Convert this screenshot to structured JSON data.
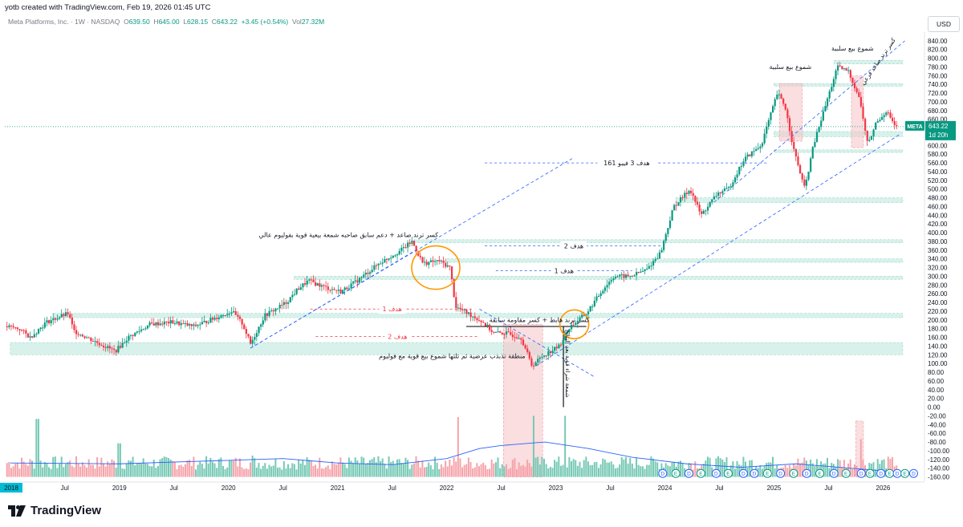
{
  "header": {
    "byline": "yotb created with TradingView.com, Feb 19, 2026 01:45 UTC"
  },
  "symbol": {
    "name": "Meta Platforms, Inc. · 1W · NASDAQ",
    "open_label": "O",
    "open": "639.50",
    "high_label": "H",
    "high": "645.00",
    "low_label": "L",
    "low": "628.15",
    "close_label": "C",
    "close": "643.22",
    "change": "+3.45 (+0.54%)",
    "vol_label": "Vol",
    "vol": "27.32M"
  },
  "currency": "USD",
  "price_tag": {
    "ticker": "META",
    "price": "643.22",
    "countdown": "1d 20h"
  },
  "footer": {
    "brand": "TradingView"
  },
  "colors": {
    "up": "#089981",
    "down": "#f23645",
    "zone": "#c8ebe3",
    "sell_zone": "#f7c8cc",
    "blue": "#2962ff",
    "orange": "#ff9800",
    "volume_ma": "#2962ff"
  },
  "chart_data": {
    "type": "candlestick",
    "interval": "1W",
    "ylim": [
      -170,
      860
    ],
    "price_ticks": [
      "-160.00",
      "-140.00",
      "-120.00",
      "-100.00",
      "-80.00",
      "-60.00",
      "-40.00",
      "-20.00",
      "0.00",
      "20.00",
      "40.00",
      "60.00",
      "80.00",
      "100.00",
      "120.00",
      "140.00",
      "160.00",
      "180.00",
      "200.00",
      "220.00",
      "240.00",
      "260.00",
      "280.00",
      "300.00",
      "320.00",
      "340.00",
      "360.00",
      "380.00",
      "400.00",
      "420.00",
      "440.00",
      "460.00",
      "480.00",
      "500.00",
      "520.00",
      "540.00",
      "560.00",
      "580.00",
      "600.00",
      "620.00",
      "640.00",
      "660.00",
      "680.00",
      "700.00",
      "720.00",
      "740.00",
      "760.00",
      "780.00",
      "800.00",
      "820.00",
      "840.00"
    ],
    "time_ticks": [
      {
        "label": "2018",
        "t": 2018.0
      },
      {
        "label": "Jul",
        "t": 2018.5
      },
      {
        "label": "2019",
        "t": 2019.0
      },
      {
        "label": "Jul",
        "t": 2019.5
      },
      {
        "label": "2020",
        "t": 2020.0
      },
      {
        "label": "Jul",
        "t": 2020.5
      },
      {
        "label": "2021",
        "t": 2021.0
      },
      {
        "label": "Jul",
        "t": 2021.5
      },
      {
        "label": "2022",
        "t": 2022.0
      },
      {
        "label": "Jul",
        "t": 2022.5
      },
      {
        "label": "2023",
        "t": 2023.0
      },
      {
        "label": "Jul",
        "t": 2023.5
      },
      {
        "label": "2024",
        "t": 2024.0
      },
      {
        "label": "Jul",
        "t": 2024.5
      },
      {
        "label": "2025",
        "t": 2025.0
      },
      {
        "label": "Jul",
        "t": 2025.5
      },
      {
        "label": "2026",
        "t": 2026.0
      }
    ],
    "xlim": [
      2017.95,
      2026.35
    ],
    "price_path": [
      [
        2017.95,
        186
      ],
      [
        2018.1,
        180
      ],
      [
        2018.2,
        160
      ],
      [
        2018.35,
        195
      ],
      [
        2018.55,
        215
      ],
      [
        2018.6,
        175
      ],
      [
        2018.8,
        150
      ],
      [
        2018.98,
        128
      ],
      [
        2019.1,
        160
      ],
      [
        2019.3,
        190
      ],
      [
        2019.5,
        195
      ],
      [
        2019.7,
        185
      ],
      [
        2019.9,
        205
      ],
      [
        2020.05,
        220
      ],
      [
        2020.15,
        190
      ],
      [
        2020.22,
        145
      ],
      [
        2020.35,
        210
      ],
      [
        2020.55,
        240
      ],
      [
        2020.65,
        270
      ],
      [
        2020.75,
        290
      ],
      [
        2020.9,
        275
      ],
      [
        2021.05,
        265
      ],
      [
        2021.2,
        290
      ],
      [
        2021.4,
        330
      ],
      [
        2021.6,
        360
      ],
      [
        2021.7,
        380
      ],
      [
        2021.8,
        330
      ],
      [
        2021.95,
        335
      ],
      [
        2022.05,
        320
      ],
      [
        2022.1,
        230
      ],
      [
        2022.25,
        210
      ],
      [
        2022.35,
        195
      ],
      [
        2022.45,
        170
      ],
      [
        2022.55,
        170
      ],
      [
        2022.7,
        160
      ],
      [
        2022.8,
        95
      ],
      [
        2022.9,
        118
      ],
      [
        2023.05,
        140
      ],
      [
        2023.15,
        185
      ],
      [
        2023.3,
        215
      ],
      [
        2023.45,
        270
      ],
      [
        2023.55,
        300
      ],
      [
        2023.7,
        300
      ],
      [
        2023.85,
        315
      ],
      [
        2023.98,
        355
      ],
      [
        2024.1,
        460
      ],
      [
        2024.25,
        500
      ],
      [
        2024.35,
        440
      ],
      [
        2024.5,
        490
      ],
      [
        2024.6,
        500
      ],
      [
        2024.75,
        570
      ],
      [
        2024.9,
        600
      ],
      [
        2025.05,
        720
      ],
      [
        2025.12,
        690
      ],
      [
        2025.2,
        590
      ],
      [
        2025.3,
        500
      ],
      [
        2025.38,
        600
      ],
      [
        2025.5,
        700
      ],
      [
        2025.6,
        780
      ],
      [
        2025.7,
        770
      ],
      [
        2025.8,
        710
      ],
      [
        2025.88,
        600
      ],
      [
        2025.95,
        650
      ],
      [
        2026.05,
        680
      ],
      [
        2026.13,
        643
      ]
    ],
    "horizontal_levels": [
      {
        "price": 643.22,
        "style": "dotted",
        "color": "#089981"
      }
    ],
    "support_resistance_zones": [
      {
        "t0": 2018.0,
        "t1": 2026.18,
        "lo": 120,
        "hi": 148
      },
      {
        "t0": 2018.4,
        "t1": 2026.18,
        "lo": 205,
        "hi": 215
      },
      {
        "t0": 2020.6,
        "t1": 2026.18,
        "lo": 293,
        "hi": 300
      },
      {
        "t0": 2022.0,
        "t1": 2026.18,
        "lo": 332,
        "hi": 340
      },
      {
        "t0": 2021.7,
        "t1": 2026.18,
        "lo": 377,
        "hi": 384
      },
      {
        "t0": 2024.1,
        "t1": 2026.18,
        "lo": 469,
        "hi": 480
      },
      {
        "t0": 2025.0,
        "t1": 2026.18,
        "lo": 584,
        "hi": 590
      },
      {
        "t0": 2025.0,
        "t1": 2026.18,
        "lo": 620,
        "hi": 632
      },
      {
        "t0": 2025.0,
        "t1": 2026.18,
        "lo": 736,
        "hi": 742
      },
      {
        "t0": 2025.55,
        "t1": 2026.18,
        "lo": 787,
        "hi": 795
      }
    ],
    "sell_zones": [
      {
        "t0": 2022.52,
        "t1": 2022.88,
        "lo": -160,
        "hi": 190
      },
      {
        "t0": 2025.05,
        "t1": 2025.26,
        "lo": 610,
        "hi": 742
      },
      {
        "t0": 2025.71,
        "t1": 2025.82,
        "lo": 595,
        "hi": 760
      },
      {
        "t0": 2025.75,
        "t1": 2025.82,
        "lo": -160,
        "hi": -32
      }
    ],
    "target_lines": [
      {
        "label": "هدف 3 فيبو 161",
        "price": 560,
        "t0": 2022.35,
        "t1": 2024.95,
        "color": "#2962ff"
      },
      {
        "label": "هدف 2",
        "price": 370,
        "t0": 2022.35,
        "t1": 2023.98,
        "color": "#2962ff"
      },
      {
        "label": "هدف 1",
        "price": 313,
        "t0": 2022.45,
        "t1": 2023.7,
        "color": "#2962ff"
      },
      {
        "label": "هدف 1",
        "price": 225,
        "t0": 2020.75,
        "t1": 2022.25,
        "color": "#f23645"
      },
      {
        "label": "هدف 2",
        "price": 162,
        "t0": 2020.8,
        "t1": 2022.3,
        "color": "#f23645"
      }
    ],
    "trend_lines": [
      {
        "t0": 2020.2,
        "p0": 135,
        "t1": 2023.15,
        "p1": 570,
        "color": "#2962ff",
        "dash": true
      },
      {
        "t0": 2020.2,
        "p0": 135,
        "t1": 2021.75,
        "p1": 365,
        "color": "#2962ff",
        "dash": true
      },
      {
        "t0": 2022.3,
        "p0": 225,
        "t1": 2023.35,
        "p1": 70,
        "color": "#2962ff",
        "dash": true
      },
      {
        "t0": 2022.82,
        "p0": 95,
        "t1": 2026.15,
        "p1": 625,
        "color": "#2962ff",
        "dash": true
      },
      {
        "t0": 2024.45,
        "p0": 470,
        "t1": 2026.2,
        "p1": 840,
        "color": "#2962ff",
        "dash": true
      }
    ],
    "black_lines": [
      {
        "t0": 2022.18,
        "p0": 185,
        "t1": 2023.28,
        "p1": 185,
        "color": "#000000"
      },
      {
        "t0": 2023.07,
        "p0": 185,
        "t1": 2023.07,
        "p1": 0,
        "color": "#000000"
      }
    ],
    "circles": [
      {
        "t": 2021.9,
        "price": 320,
        "rx": 30,
        "ry": 27
      },
      {
        "t": 2023.17,
        "price": 190,
        "rx": 18,
        "ry": 18
      }
    ],
    "annotations": [
      {
        "text": "كسر ترند صاعد + دعم سابق صاحبه شمعة بيعية قوية بفوليوم عالي",
        "t": 2021.1,
        "price": 390,
        "color": "#131722"
      },
      {
        "text": "كسر ترند هابط + كسر مقاومة سابقة",
        "t": 2022.85,
        "price": 195,
        "color": "#131722"
      },
      {
        "text": "منطقة تذبذب عرضية ثم تلتها شموع بيع قوية مع فوليوم",
        "t": 2022.05,
        "price": 112,
        "color": "#131722"
      },
      {
        "text": "شموع بيع سلبية",
        "t": 2025.15,
        "price": 775,
        "color": "#131722"
      },
      {
        "text": "شموع بيع سلبية",
        "t": 2025.72,
        "price": 818,
        "color": "#131722"
      }
    ],
    "rotated_annotations": [
      {
        "text": "شمعة شراء قوية بعد النتائج",
        "t": 2023.09,
        "price": 100,
        "angle": 90
      },
      {
        "text": "كسر ترند صاعد فرعي",
        "t": 2025.97,
        "price": 790,
        "angle": -55
      }
    ],
    "earnings_markers": {
      "labels": [
        "D",
        "E",
        "D",
        "E",
        "D",
        "E",
        "D",
        "D",
        "E",
        "D",
        "E",
        "D",
        "E",
        "D",
        "E",
        "D",
        "E",
        "D",
        "E",
        "D",
        "E",
        "D"
      ],
      "t": [
        2023.98,
        2024.1,
        2024.22,
        2024.33,
        2024.47,
        2024.58,
        2024.72,
        2024.82,
        2024.94,
        2025.06,
        2025.18,
        2025.3,
        2025.42,
        2025.55,
        2025.66,
        2025.8,
        2025.88,
        2025.98,
        2026.06,
        2026.13,
        2026.2,
        2026.28
      ],
      "price": -152
    },
    "volume": {
      "scale_max": 200,
      "baseline_price": -160,
      "band_top_price": -20,
      "ma_path": [
        [
          2018.0,
          -128
        ],
        [
          2019.0,
          -130
        ],
        [
          2020.0,
          -122
        ],
        [
          2020.5,
          -118
        ],
        [
          2021.0,
          -128
        ],
        [
          2021.5,
          -132
        ],
        [
          2022.0,
          -118
        ],
        [
          2022.3,
          -95
        ],
        [
          2022.5,
          -88
        ],
        [
          2022.9,
          -80
        ],
        [
          2023.3,
          -95
        ],
        [
          2023.7,
          -115
        ],
        [
          2024.2,
          -130
        ],
        [
          2024.7,
          -138
        ],
        [
          2025.2,
          -130
        ],
        [
          2025.7,
          -140
        ],
        [
          2026.1,
          -148
        ]
      ],
      "spikes": [
        [
          2018.25,
          0.95
        ],
        [
          2019.0,
          0.55
        ],
        [
          2020.22,
          0.35
        ],
        [
          2022.1,
          0.98
        ],
        [
          2022.8,
          1.0
        ],
        [
          2023.09,
          1.0
        ],
        [
          2025.8,
          0.62
        ]
      ]
    }
  }
}
